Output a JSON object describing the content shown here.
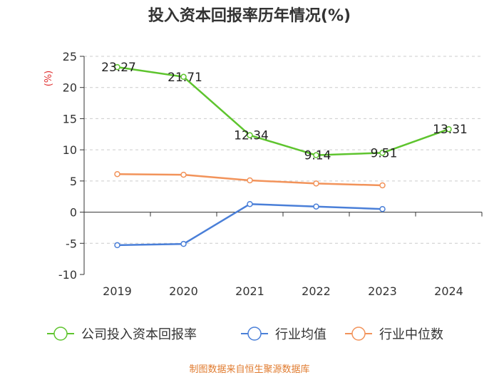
{
  "chart_data": {
    "type": "line",
    "title": "投入资本回报率历年情况(%)",
    "unit_label": "(%)",
    "categories": [
      "2019",
      "2020",
      "2021",
      "2022",
      "2023",
      "2024"
    ],
    "ylim": [
      -10,
      25
    ],
    "yticks": [
      -10,
      -5,
      0,
      5,
      10,
      15,
      20,
      25
    ],
    "grid": true,
    "legend_position": "bottom",
    "series": [
      {
        "name": "公司投入资本回报率",
        "color": "#5ec42e",
        "values": [
          23.27,
          21.71,
          12.34,
          9.14,
          9.51,
          13.31
        ],
        "labels": [
          "23.27",
          "21.71",
          "12.34",
          "9.14",
          "9.51",
          "13.31"
        ]
      },
      {
        "name": "行业均值",
        "color": "#4a7fd8",
        "values": [
          -5.3,
          -5.1,
          1.3,
          0.9,
          0.5,
          null
        ]
      },
      {
        "name": "行业中位数",
        "color": "#f2935a",
        "values": [
          6.1,
          6.0,
          5.1,
          4.6,
          4.3,
          null
        ]
      }
    ]
  },
  "source": "制图数据来自恒生聚源数据库"
}
